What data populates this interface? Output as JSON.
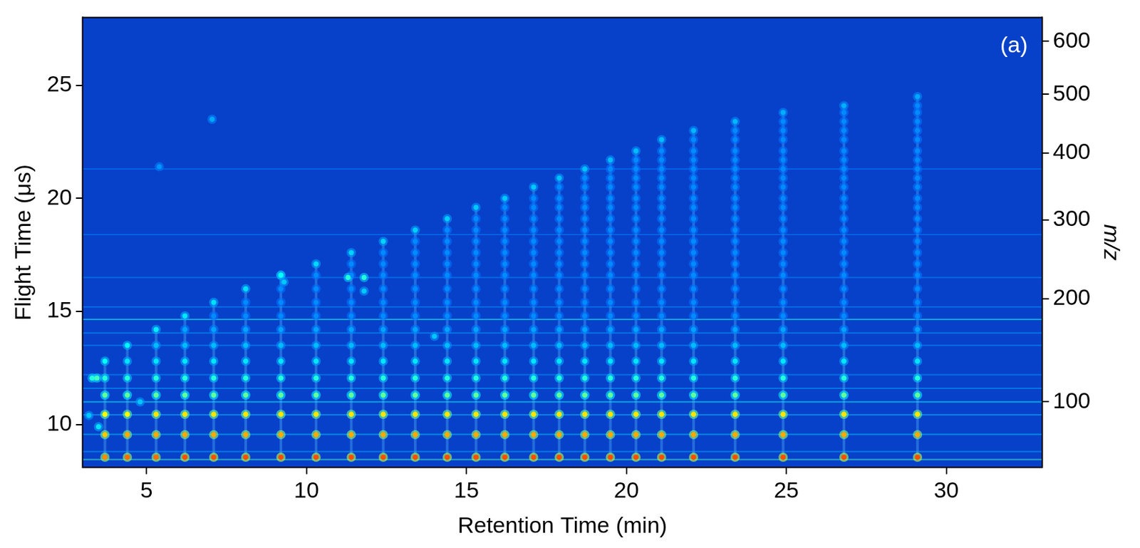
{
  "chart_data": {
    "type": "heatmap",
    "panel_label": "(a)",
    "x_label": "Retention Time (min)",
    "y_label": "Flight Time (μs)",
    "y2_label": "m/z",
    "xlim": [
      3,
      33
    ],
    "xticks": [
      5,
      10,
      15,
      20,
      25,
      30
    ],
    "ylim": [
      8.1,
      28
    ],
    "yticks": [
      10,
      15,
      20,
      25
    ],
    "y2lim": [
      54.2,
      647.9
    ],
    "y2ticks": [
      100,
      200,
      300,
      400,
      500,
      600
    ],
    "mz_calibration": {
      "flight_time_per_sqrt_mz": 1.1
    },
    "grid": false,
    "x": [
      3.7,
      4.4,
      5.3,
      6.2,
      7.1,
      8.1,
      9.2,
      10.3,
      11.4,
      12.4,
      13.4,
      14.4,
      15.3,
      16.2,
      17.1,
      17.9,
      18.7,
      19.5,
      20.3,
      21.1,
      22.1,
      23.4,
      24.9,
      26.8,
      29.1
    ],
    "y": [
      8.55,
      9.55,
      10.45,
      11.3,
      12.05,
      12.8,
      13.5,
      14.2,
      14.8,
      15.4,
      16.0,
      16.6,
      17.1,
      17.6,
      18.1,
      18.6,
      19.1,
      19.6,
      20.0,
      20.5,
      20.9,
      21.3,
      21.7,
      22.1,
      22.6,
      23.0,
      23.4,
      23.8,
      24.1,
      24.5
    ],
    "cells": [
      [
        90,
        80,
        70,
        45,
        35,
        30
      ],
      [
        95,
        85,
        72,
        45,
        35,
        25,
        28
      ],
      [
        95,
        85,
        75,
        45,
        35,
        25,
        18,
        26
      ],
      [
        100,
        85,
        75,
        45,
        35,
        25,
        18,
        14,
        25
      ],
      [
        100,
        85,
        75,
        45,
        35,
        25,
        18,
        14,
        10,
        24
      ],
      [
        100,
        85,
        75,
        45,
        35,
        25,
        18,
        14,
        10,
        10,
        24
      ],
      [
        100,
        85,
        75,
        45,
        35,
        25,
        18,
        14,
        10,
        10,
        10,
        23
      ],
      [
        100,
        85,
        75,
        45,
        35,
        25,
        18,
        14,
        10,
        10,
        10,
        10,
        23
      ],
      [
        100,
        85,
        75,
        45,
        35,
        25,
        18,
        14,
        10,
        10,
        10,
        10,
        10,
        22
      ],
      [
        100,
        85,
        75,
        45,
        35,
        25,
        18,
        14,
        10,
        10,
        10,
        10,
        10,
        10,
        22
      ],
      [
        100,
        85,
        75,
        45,
        35,
        25,
        18,
        14,
        10,
        10,
        10,
        10,
        10,
        10,
        10,
        21
      ],
      [
        100,
        85,
        75,
        45,
        35,
        25,
        18,
        14,
        10,
        10,
        10,
        10,
        10,
        10,
        10,
        10,
        21
      ],
      [
        100,
        85,
        75,
        45,
        35,
        25,
        18,
        14,
        10,
        10,
        10,
        10,
        10,
        10,
        10,
        10,
        10,
        20
      ],
      [
        100,
        85,
        75,
        45,
        35,
        25,
        18,
        14,
        10,
        10,
        10,
        10,
        10,
        10,
        10,
        10,
        10,
        10,
        20
      ],
      [
        100,
        85,
        75,
        45,
        35,
        25,
        18,
        14,
        10,
        10,
        10,
        10,
        10,
        10,
        10,
        10,
        10,
        10,
        10,
        20
      ],
      [
        100,
        85,
        75,
        45,
        35,
        25,
        18,
        14,
        10,
        10,
        10,
        10,
        10,
        10,
        10,
        10,
        10,
        10,
        10,
        10,
        19
      ],
      [
        100,
        85,
        75,
        45,
        35,
        25,
        18,
        14,
        10,
        10,
        10,
        10,
        10,
        10,
        10,
        10,
        10,
        10,
        10,
        10,
        10,
        19
      ],
      [
        100,
        85,
        75,
        45,
        35,
        25,
        18,
        14,
        10,
        10,
        10,
        10,
        10,
        10,
        10,
        10,
        10,
        10,
        10,
        10,
        10,
        10,
        18
      ],
      [
        100,
        85,
        75,
        45,
        35,
        25,
        18,
        14,
        10,
        10,
        10,
        10,
        10,
        10,
        10,
        10,
        10,
        10,
        10,
        10,
        10,
        10,
        10,
        18
      ],
      [
        100,
        85,
        75,
        45,
        35,
        25,
        18,
        14,
        10,
        10,
        10,
        10,
        10,
        10,
        10,
        10,
        10,
        10,
        10,
        10,
        10,
        10,
        10,
        10,
        18
      ],
      [
        100,
        85,
        75,
        45,
        35,
        25,
        18,
        14,
        10,
        10,
        10,
        10,
        10,
        10,
        10,
        10,
        10,
        10,
        10,
        10,
        10,
        10,
        10,
        10,
        10,
        17
      ],
      [
        100,
        85,
        75,
        45,
        35,
        25,
        18,
        14,
        10,
        10,
        10,
        10,
        10,
        10,
        10,
        10,
        10,
        10,
        10,
        10,
        10,
        10,
        10,
        10,
        10,
        10,
        17
      ],
      [
        100,
        85,
        75,
        45,
        35,
        25,
        18,
        14,
        10,
        10,
        10,
        10,
        10,
        10,
        10,
        10,
        10,
        10,
        10,
        10,
        10,
        10,
        10,
        10,
        10,
        10,
        10,
        16
      ],
      [
        100,
        85,
        75,
        45,
        35,
        25,
        18,
        14,
        10,
        10,
        10,
        10,
        10,
        10,
        10,
        10,
        10,
        10,
        10,
        10,
        10,
        10,
        10,
        10,
        10,
        10,
        10,
        10,
        16
      ],
      [
        100,
        85,
        75,
        45,
        35,
        25,
        18,
        14,
        10,
        10,
        10,
        10,
        10,
        10,
        10,
        10,
        10,
        10,
        10,
        10,
        10,
        10,
        10,
        10,
        10,
        10,
        10,
        10,
        10,
        15
      ]
    ],
    "background_lines": {
      "y": [
        8.45,
        8.8,
        9.56,
        10.43,
        11.0,
        11.6,
        12.2,
        13.5,
        14.05,
        14.65,
        15.2,
        16.5,
        18.4,
        21.3
      ],
      "values": [
        40,
        15,
        20,
        18,
        30,
        14,
        12,
        12,
        14,
        32,
        12,
        10,
        8,
        8
      ]
    },
    "other_peaks": {
      "x": [
        3.45,
        3.3,
        3.5,
        4.8,
        9.2,
        9.3,
        11.3,
        11.8,
        11.8,
        14.0,
        7.05,
        5.4,
        3.2
      ],
      "y": [
        12.05,
        12.05,
        9.9,
        11.0,
        16.6,
        16.3,
        16.5,
        16.5,
        15.9,
        13.9,
        23.5,
        21.4,
        10.4
      ],
      "values": [
        40,
        35,
        25,
        20,
        30,
        20,
        35,
        35,
        20,
        20,
        15,
        12,
        20
      ]
    }
  }
}
